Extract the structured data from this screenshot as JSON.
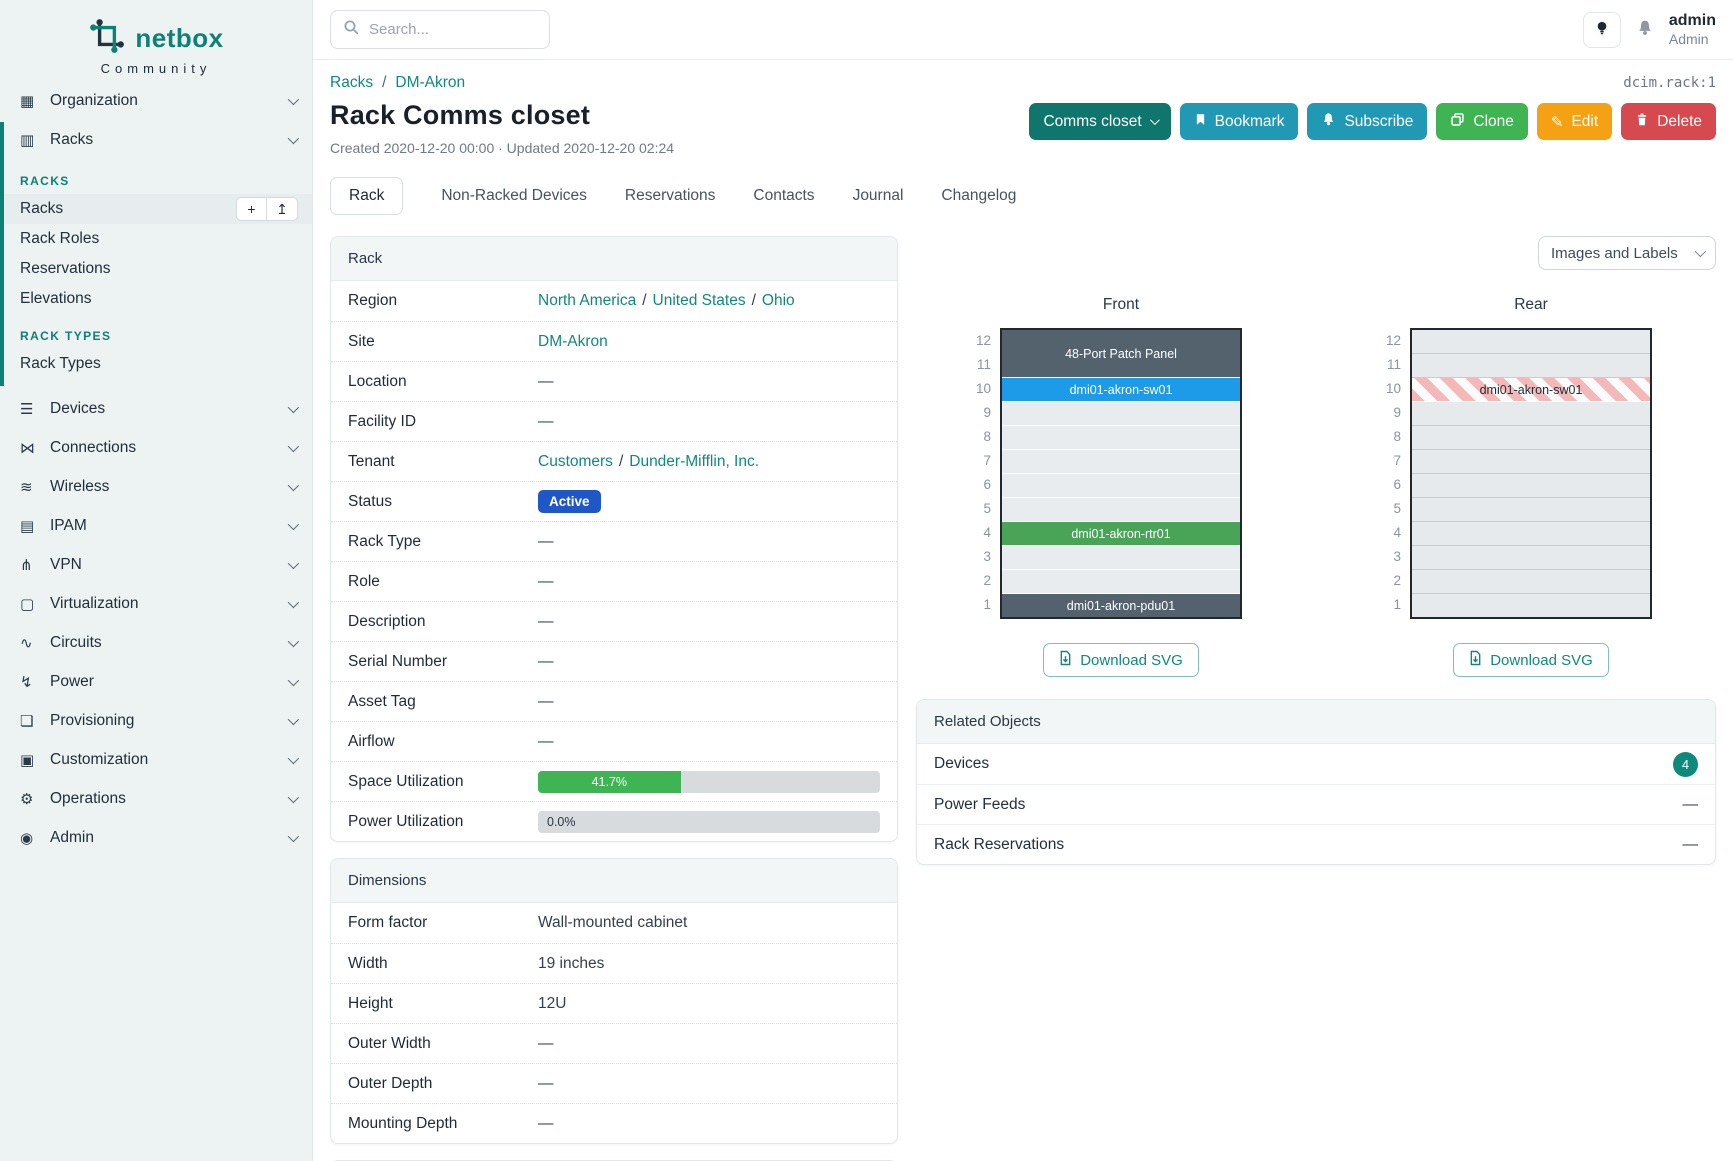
{
  "colors": {
    "brand_teal": "#0d8175",
    "link_teal": "#0e8a7d",
    "status_active_bg": "#2057c7",
    "btn_scope": "#0f766e",
    "btn_info": "#2299b4",
    "btn_success": "#3eb452",
    "btn_warning": "#f5a114",
    "btn_danger": "#d6494f",
    "slot_slate": "#54626e",
    "slot_blue": "#1e9be8",
    "slot_green": "#4aa458",
    "slot_striped_red": "#f5b8b8",
    "progress_green": "#3eb452"
  },
  "brand": {
    "name": "netbox",
    "subtitle": "Community"
  },
  "topbar": {
    "search_placeholder": "Search...",
    "user_name": "admin",
    "user_role": "Admin"
  },
  "sidebar": {
    "top_items": [
      {
        "label": "Organization",
        "icon": "building-icon",
        "glyph": "▦"
      },
      {
        "label": "Racks",
        "icon": "rack-icon",
        "glyph": "▥"
      }
    ],
    "groups": [
      {
        "heading": "RACKS",
        "items": [
          {
            "label": "Racks"
          },
          {
            "label": "Rack Roles"
          },
          {
            "label": "Reservations"
          },
          {
            "label": "Elevations"
          }
        ]
      },
      {
        "heading": "RACK TYPES",
        "items": [
          {
            "label": "Rack Types"
          }
        ]
      }
    ],
    "add_button_glyph": "+",
    "import_button_glyph": "↥",
    "bottom_items": [
      {
        "label": "Devices",
        "icon": "devices-icon",
        "glyph": "☰"
      },
      {
        "label": "Connections",
        "icon": "plug-icon",
        "glyph": "⋈"
      },
      {
        "label": "Wireless",
        "icon": "wifi-icon",
        "glyph": "≋"
      },
      {
        "label": "IPAM",
        "icon": "ip-card-icon",
        "glyph": "▤"
      },
      {
        "label": "VPN",
        "icon": "vpn-icon",
        "glyph": "⋔"
      },
      {
        "label": "Virtualization",
        "icon": "monitor-icon",
        "glyph": "▢"
      },
      {
        "label": "Circuits",
        "icon": "circuits-icon",
        "glyph": "∿"
      },
      {
        "label": "Power",
        "icon": "lightning-icon",
        "glyph": "↯"
      },
      {
        "label": "Provisioning",
        "icon": "document-icon",
        "glyph": "❏"
      },
      {
        "label": "Customization",
        "icon": "toolbox-icon",
        "glyph": "▣"
      },
      {
        "label": "Operations",
        "icon": "gear-icon",
        "glyph": "⚙"
      },
      {
        "label": "Admin",
        "icon": "users-icon",
        "glyph": "◉"
      }
    ]
  },
  "header": {
    "breadcrumb": [
      {
        "label": "Racks"
      },
      {
        "label": "DM-Akron"
      }
    ],
    "breadcrumb_separator": "/",
    "object_id": "dcim.rack:1",
    "title": "Rack Comms closet",
    "meta": "Created 2020-12-20 00:00 · Updated 2020-12-20 02:24",
    "buttons": {
      "scope": "Comms closet",
      "bookmark": "Bookmark",
      "subscribe": "Subscribe",
      "clone": "Clone",
      "edit": "Edit",
      "edit_glyph": "✎",
      "delete": "Delete"
    }
  },
  "tabs": [
    {
      "label": "Rack",
      "active": true
    },
    {
      "label": "Non-Racked Devices"
    },
    {
      "label": "Reservations"
    },
    {
      "label": "Contacts"
    },
    {
      "label": "Journal"
    },
    {
      "label": "Changelog"
    }
  ],
  "rack_card": {
    "title": "Rack",
    "value_separator": "/",
    "region_label": "Region",
    "region_links": [
      "North America",
      "United States",
      "Ohio"
    ],
    "site_label": "Site",
    "site_link": "DM-Akron",
    "location_label": "Location",
    "location_value": "—",
    "facility_label": "Facility ID",
    "facility_value": "—",
    "tenant_label": "Tenant",
    "tenant_links": [
      "Customers",
      "Dunder-Mifflin, Inc."
    ],
    "status_label": "Status",
    "status_value": "Active",
    "rack_type_label": "Rack Type",
    "rack_type_value": "—",
    "role_label": "Role",
    "role_value": "—",
    "description_label": "Description",
    "description_value": "—",
    "serial_label": "Serial Number",
    "serial_value": "—",
    "asset_label": "Asset Tag",
    "asset_value": "—",
    "airflow_label": "Airflow",
    "airflow_value": "—",
    "space_label": "Space Utilization",
    "space_value": "41.7%",
    "space_percent": 41.7,
    "power_label": "Power Utilization",
    "power_value": "0.0%",
    "power_percent": 0
  },
  "dimensions_card": {
    "title": "Dimensions",
    "rows": [
      {
        "label": "Form factor",
        "value": "Wall-mounted cabinet"
      },
      {
        "label": "Width",
        "value": "19 inches"
      },
      {
        "label": "Height",
        "value": "12U"
      },
      {
        "label": "Outer Width",
        "value": "—"
      },
      {
        "label": "Outer Depth",
        "value": "—"
      },
      {
        "label": "Mounting Depth",
        "value": "—"
      }
    ]
  },
  "elevations": {
    "view_select": "Images and Labels",
    "download_label": "Download SVG",
    "front": {
      "title": "Front",
      "unit_numbers": [
        12,
        11,
        10,
        9,
        8,
        7,
        6,
        5,
        4,
        3,
        2,
        1
      ],
      "devices": [
        {
          "name": "48-Port Patch Panel",
          "position": "U11-U12",
          "span": 2
        },
        {
          "name": "dmi01-akron-sw01",
          "position": "U10",
          "span": 1
        },
        {
          "name": "dmi01-akron-rtr01",
          "position": "U4",
          "span": 1
        },
        {
          "name": "dmi01-akron-pdu01",
          "position": "U1",
          "span": 1
        }
      ]
    },
    "rear": {
      "title": "Rear",
      "unit_numbers": [
        12,
        11,
        10,
        9,
        8,
        7,
        6,
        5,
        4,
        3,
        2,
        1
      ],
      "devices": [
        {
          "name": "dmi01-akron-sw01",
          "position": "U10",
          "span": 1,
          "style": "striped"
        }
      ]
    }
  },
  "related_objects": {
    "title": "Related Objects",
    "rows": [
      {
        "label": "Devices",
        "count": "4"
      },
      {
        "label": "Power Feeds",
        "value": "—"
      },
      {
        "label": "Rack Reservations",
        "value": "—"
      }
    ]
  }
}
